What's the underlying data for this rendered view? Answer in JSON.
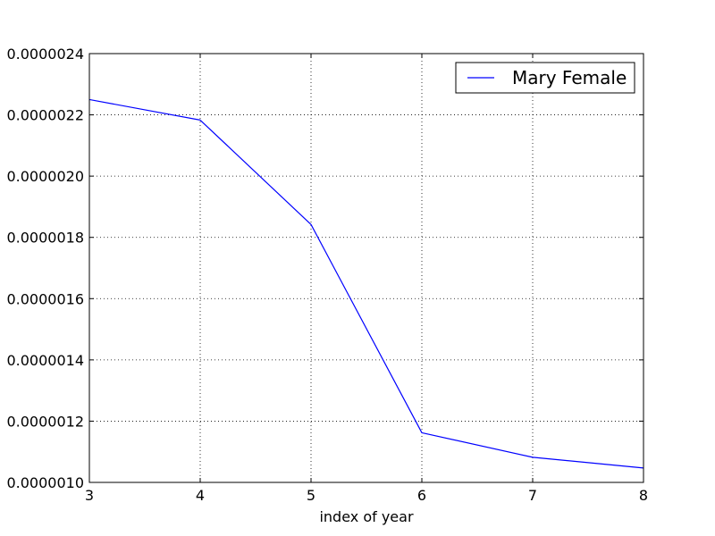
{
  "chart_data": {
    "type": "line",
    "title": "",
    "xlabel": "index of year",
    "ylabel": "",
    "x": [
      3,
      4,
      5,
      6,
      7,
      8
    ],
    "series": [
      {
        "name": "Mary Female",
        "color": "#0000ff",
        "values": [
          2.25e-06,
          2.183e-06,
          1.842e-06,
          1.162e-06,
          1.082e-06,
          1.047e-06
        ]
      }
    ],
    "xlim": [
      3,
      8
    ],
    "ylim": [
      1e-06,
      2.4e-06
    ],
    "xticks": [
      3,
      4,
      5,
      6,
      7,
      8
    ],
    "xtick_labels": [
      "3",
      "4",
      "5",
      "6",
      "7",
      "8"
    ],
    "yticks": [
      1e-06,
      1.2e-06,
      1.4e-06,
      1.6e-06,
      1.8e-06,
      2e-06,
      2.2e-06,
      2.4e-06
    ],
    "ytick_labels": [
      "0.0000010",
      "0.0000012",
      "0.0000014",
      "0.0000016",
      "0.0000018",
      "0.0000020",
      "0.0000022",
      "0.0000024"
    ],
    "grid": true,
    "grid_style": "dotted",
    "legend_position": "top-right"
  }
}
